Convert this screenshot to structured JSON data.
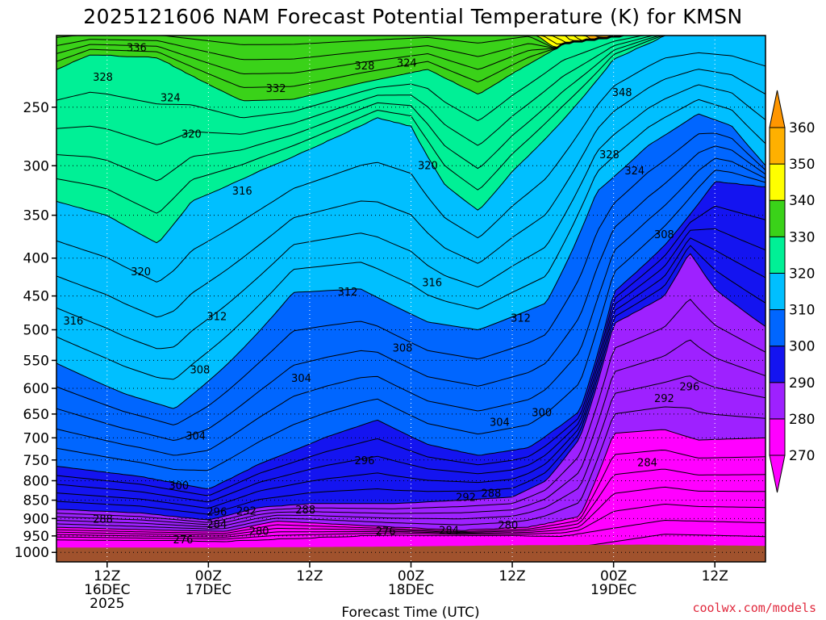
{
  "chart_data": {
    "type": "heatmap",
    "title": "2025121606 NAM Forecast Potential Temperature (K) for KMSN",
    "xlabel": "Forecast Time (UTC)",
    "ylabel": "",
    "credit": "coolwx.com/models",
    "y_scale": "log",
    "y_inverted": true,
    "ylim": [
      1000,
      200
    ],
    "y_ticks": [
      250,
      300,
      350,
      400,
      450,
      500,
      550,
      600,
      650,
      700,
      750,
      800,
      850,
      900,
      950,
      1000
    ],
    "x_range_hours": [
      0,
      84
    ],
    "x_ticks": [
      {
        "hour": 6,
        "line1": "12Z",
        "line2": "16DEC",
        "line3": "2025"
      },
      {
        "hour": 18,
        "line1": "00Z",
        "line2": "17DEC",
        "line3": ""
      },
      {
        "hour": 30,
        "line1": "12Z",
        "line2": "",
        "line3": ""
      },
      {
        "hour": 42,
        "line1": "00Z",
        "line2": "18DEC",
        "line3": ""
      },
      {
        "hour": 54,
        "line1": "12Z",
        "line2": "",
        "line3": ""
      },
      {
        "hour": 66,
        "line1": "00Z",
        "line2": "19DEC",
        "line3": ""
      },
      {
        "hour": 78,
        "line1": "12Z",
        "line2": "",
        "line3": ""
      }
    ],
    "colorbar": {
      "labels": [
        270,
        280,
        290,
        300,
        310,
        320,
        330,
        340,
        350,
        360
      ],
      "colors": [
        "#ff00ff",
        "#bf00ff",
        "#7f00ff",
        "#0000ff",
        "#0050ff",
        "#009bff",
        "#00c8ff",
        "#00ffb0",
        "#19e619",
        "#5ee600",
        "#ffff00",
        "#ffc800",
        "#ff9600"
      ],
      "extend": "both"
    },
    "fill_bands": [
      {
        "from": 270,
        "to": 280,
        "color": "#ff00ff"
      },
      {
        "from": 280,
        "to": 290,
        "color": "#9e21ff"
      },
      {
        "from": 290,
        "to": 300,
        "color": "#1414f0"
      },
      {
        "from": 300,
        "to": 310,
        "color": "#0066ff"
      },
      {
        "from": 310,
        "to": 320,
        "color": "#00bfff"
      },
      {
        "from": 320,
        "to": 330,
        "color": "#00f096"
      },
      {
        "from": 330,
        "to": 340,
        "color": "#3ad219"
      },
      {
        "from": 340,
        "to": 350,
        "color": "#ffff00"
      },
      {
        "from": 350,
        "to": 360,
        "color": "#ffb000"
      }
    ],
    "ground_color": "#a0522d",
    "contour_interval": 2,
    "contour_labels": [
      {
        "value": "336",
        "hour": 9.5,
        "p": 208
      },
      {
        "value": "328",
        "hour": 5.5,
        "p": 228
      },
      {
        "value": "332",
        "hour": 26,
        "p": 236
      },
      {
        "value": "324",
        "hour": 13.5,
        "p": 243
      },
      {
        "value": "328",
        "hour": 36.5,
        "p": 220
      },
      {
        "value": "324",
        "hour": 41.5,
        "p": 218
      },
      {
        "value": "348",
        "hour": 67,
        "p": 239
      },
      {
        "value": "320",
        "hour": 16,
        "p": 272
      },
      {
        "value": "328",
        "hour": 65.5,
        "p": 290
      },
      {
        "value": "324",
        "hour": 68.5,
        "p": 305
      },
      {
        "value": "320",
        "hour": 44,
        "p": 300
      },
      {
        "value": "316",
        "hour": 22,
        "p": 325
      },
      {
        "value": "308",
        "hour": 72,
        "p": 372
      },
      {
        "value": "320",
        "hour": 10,
        "p": 418
      },
      {
        "value": "316",
        "hour": 44.5,
        "p": 432
      },
      {
        "value": "312",
        "hour": 34.5,
        "p": 445
      },
      {
        "value": "316",
        "hour": 2,
        "p": 487
      },
      {
        "value": "312",
        "hour": 19,
        "p": 480
      },
      {
        "value": "312",
        "hour": 55,
        "p": 483
      },
      {
        "value": "308",
        "hour": 41,
        "p": 530
      },
      {
        "value": "308",
        "hour": 17,
        "p": 567
      },
      {
        "value": "304",
        "hour": 29,
        "p": 582
      },
      {
        "value": "296",
        "hour": 75,
        "p": 598
      },
      {
        "value": "292",
        "hour": 72,
        "p": 620
      },
      {
        "value": "300",
        "hour": 57.5,
        "p": 648
      },
      {
        "value": "304",
        "hour": 52.5,
        "p": 668
      },
      {
        "value": "304",
        "hour": 16.5,
        "p": 697
      },
      {
        "value": "296",
        "hour": 36.5,
        "p": 752
      },
      {
        "value": "284",
        "hour": 70,
        "p": 757
      },
      {
        "value": "300",
        "hour": 14.5,
        "p": 813
      },
      {
        "value": "288",
        "hour": 51.5,
        "p": 833
      },
      {
        "value": "292",
        "hour": 48.5,
        "p": 843
      },
      {
        "value": "288",
        "hour": 29.5,
        "p": 877
      },
      {
        "value": "292",
        "hour": 22.5,
        "p": 880
      },
      {
        "value": "296",
        "hour": 19,
        "p": 882
      },
      {
        "value": "288",
        "hour": 5.5,
        "p": 903
      },
      {
        "value": "284",
        "hour": 19,
        "p": 917
      },
      {
        "value": "280",
        "hour": 24,
        "p": 937
      },
      {
        "value": "280",
        "hour": 53.5,
        "p": 920
      },
      {
        "value": "276",
        "hour": 39,
        "p": 937
      },
      {
        "value": "284",
        "hour": 46.5,
        "p": 935
      },
      {
        "value": "276",
        "hour": 15,
        "p": 962
      }
    ]
  }
}
